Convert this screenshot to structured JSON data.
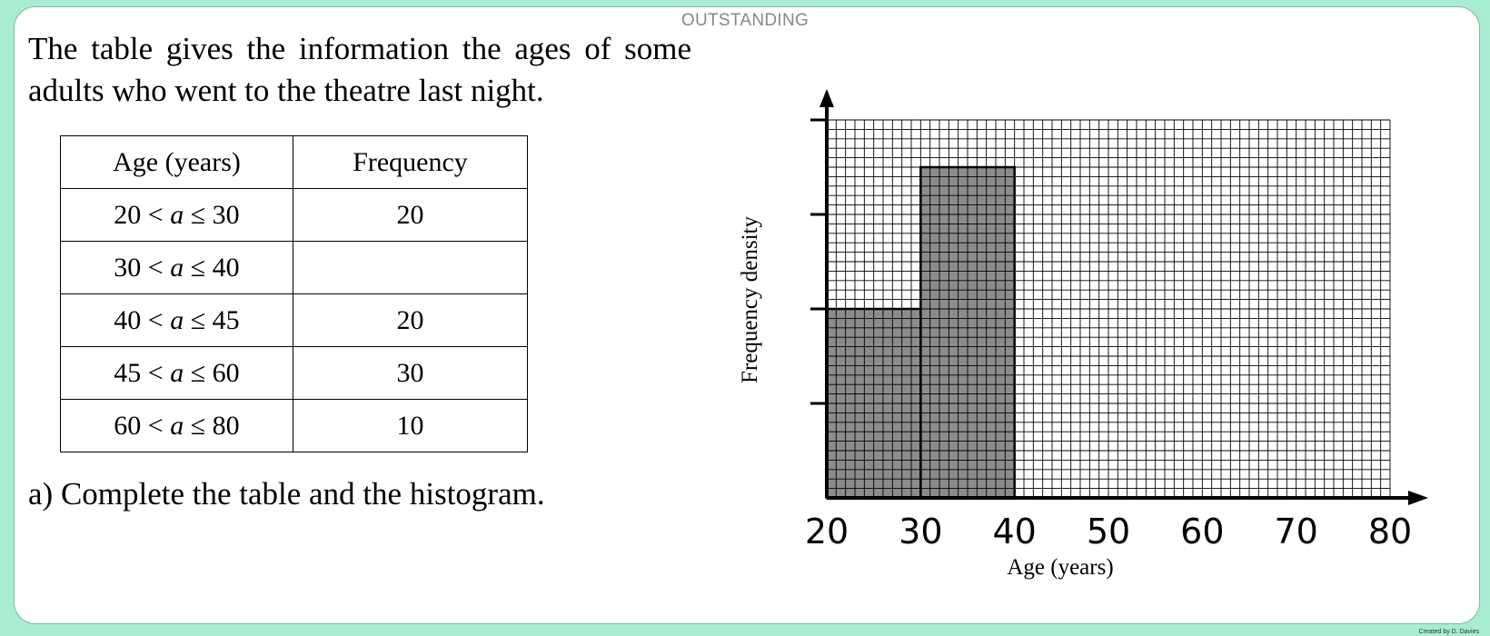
{
  "header": {
    "label": "OUTSTANDING"
  },
  "intro": {
    "text": "The table gives the information the ages of some adults who went to the theatre last night."
  },
  "table": {
    "headers": [
      "Age (years)",
      "Frequency"
    ],
    "rows": [
      {
        "interval_pre": "20 < ",
        "var": "a",
        "interval_post": " ≤ 30",
        "frequency": "20"
      },
      {
        "interval_pre": "30 < ",
        "var": "a",
        "interval_post": " ≤ 40",
        "frequency": ""
      },
      {
        "interval_pre": "40 < ",
        "var": "a",
        "interval_post": " ≤ 45",
        "frequency": "20"
      },
      {
        "interval_pre": "45 < ",
        "var": "a",
        "interval_post": " ≤ 60",
        "frequency": "30"
      },
      {
        "interval_pre": "60 < ",
        "var": "a",
        "interval_post": " ≤ 80",
        "frequency": "10"
      }
    ]
  },
  "question": {
    "text": "a) Complete the table and the histogram."
  },
  "footer": {
    "credit": "Created by D. Davies"
  },
  "chart_data": {
    "type": "bar",
    "subtype": "histogram",
    "xlabel": "Age (years)",
    "ylabel": "Frequency density",
    "x_ticks": [
      20,
      30,
      40,
      50,
      60,
      70,
      80
    ],
    "xlim": [
      20,
      80
    ],
    "y_ticks_labeled": false,
    "y_tick_count": 4,
    "ylim": [
      0,
      4
    ],
    "grid": true,
    "bars": [
      {
        "from": 20,
        "to": 30,
        "height": 2
      },
      {
        "from": 30,
        "to": 40,
        "height": 3.5
      }
    ],
    "bar_color": "#8c8c8c",
    "grid_color": "#000000"
  }
}
